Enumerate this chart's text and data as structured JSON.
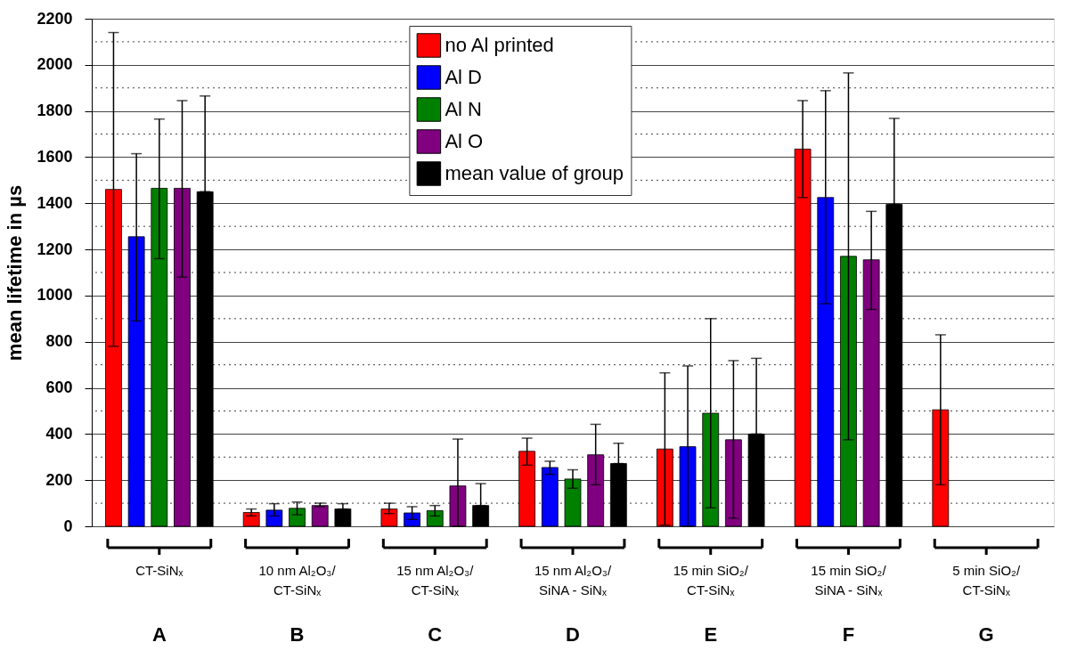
{
  "chart_data": {
    "type": "bar",
    "ylabel": "mean lifetime in µs",
    "categories": [
      "CT-SiNₓ",
      "10 nm Al₂O₃/\nCT-SiNₓ",
      "15 nm Al₂O₃/\nCT-SiNₓ",
      "15 nm Al₂O₃/\nSiNA - SiNₓ",
      "15 min SiO₂/\nCT-SiNₓ",
      "15 min SiO₂/\nSiNA - SiNₓ",
      "5 min SiO₂/\nCT-SiNₓ"
    ],
    "series": [
      {
        "name": "no Al printed",
        "color": "#ff0000",
        "values": [
          1460,
          60,
          75,
          325,
          335,
          1635,
          505
        ],
        "errors": [
          [
            780,
            2140
          ],
          [
            45,
            75
          ],
          [
            55,
            100
          ],
          [
            265,
            382
          ],
          [
            5,
            665
          ],
          [
            1425,
            1845
          ],
          [
            180,
            830
          ]
        ]
      },
      {
        "name": "Al D",
        "color": "#0000ff",
        "values": [
          1255,
          70,
          58,
          255,
          345,
          1425,
          null
        ],
        "errors": [
          [
            890,
            1615
          ],
          [
            45,
            98
          ],
          [
            30,
            85
          ],
          [
            225,
            282
          ],
          [
            0,
            695
          ],
          [
            965,
            1888
          ],
          null
        ]
      },
      {
        "name": "Al N",
        "color": "#008000",
        "values": [
          1465,
          78,
          68,
          205,
          490,
          1170,
          null
        ],
        "errors": [
          [
            1160,
            1765
          ],
          [
            50,
            105
          ],
          [
            45,
            90
          ],
          [
            165,
            245
          ],
          [
            80,
            900
          ],
          [
            375,
            1965
          ],
          null
        ]
      },
      {
        "name": "Al O",
        "color": "#800080",
        "values": [
          1465,
          90,
          175,
          310,
          375,
          1155,
          null
        ],
        "errors": [
          [
            1080,
            1845
          ],
          [
            85,
            100
          ],
          [
            0,
            378
          ],
          [
            180,
            442
          ],
          [
            35,
            718
          ],
          [
            940,
            1365
          ],
          null
        ]
      },
      {
        "name": "mean value of group",
        "color": "#000000",
        "values": [
          1450,
          75,
          90,
          272,
          400,
          1395,
          null
        ],
        "errors": [
          [
            1450,
            1865
          ],
          [
            75,
            98
          ],
          [
            90,
            185
          ],
          [
            272,
            360
          ],
          [
            400,
            728
          ],
          [
            1395,
            1768
          ],
          null
        ]
      }
    ],
    "annotations": [
      "A",
      "B",
      "C",
      "D",
      "E",
      "F",
      "G"
    ],
    "ylim": [
      0,
      2200
    ],
    "yticks": [
      0,
      200,
      400,
      600,
      800,
      1000,
      1200,
      1400,
      1600,
      1800,
      2000,
      2200
    ],
    "grid": "y",
    "legend": "top"
  }
}
